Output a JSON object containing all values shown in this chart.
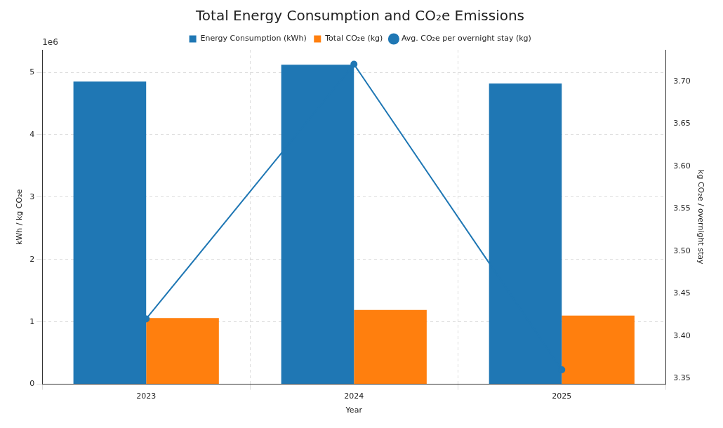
{
  "chart_data": {
    "type": "bar",
    "title": "Total Energy Consumption and CO₂e Emissions",
    "xlabel": "Year",
    "ylabel": "kWh / kg CO₂e",
    "y2label": "kg CO₂e / overnight stay",
    "categories": [
      "2023",
      "2024",
      "2025"
    ],
    "series": [
      {
        "name": "Energy Consumption (kWh)",
        "color": "#1f77b4",
        "values": [
          4.85,
          5.12,
          4.82
        ]
      },
      {
        "name": "Total CO₂e (kg)",
        "color": "#ff7f0e",
        "values": [
          1.06,
          1.19,
          1.1
        ]
      },
      {
        "name": "Avg. CO₂e per overnight stay (kg)",
        "type": "line",
        "axis": "y2",
        "color": "#1f77b4",
        "values": [
          3.42,
          3.72,
          3.36
        ],
        "marker": "circle",
        "line_style": "solid"
      }
    ],
    "ylim": [
      0,
      5.36
    ],
    "yticks": [
      0,
      1,
      2,
      3,
      4,
      5
    ],
    "y2lim": [
      3.343,
      3.737
    ],
    "y2ticks": [
      3.35,
      {
        "value": 3.4,
        "label": "3.40"
      },
      3.45,
      {
        "value": 3.5,
        "label": "3.50"
      },
      3.55,
      {
        "value": 3.6,
        "label": "3.60"
      },
      3.65,
      {
        "value": 3.7,
        "label": "3.70"
      }
    ],
    "annotations": [
      "1e6"
    ],
    "grid": true,
    "legend": "top"
  }
}
